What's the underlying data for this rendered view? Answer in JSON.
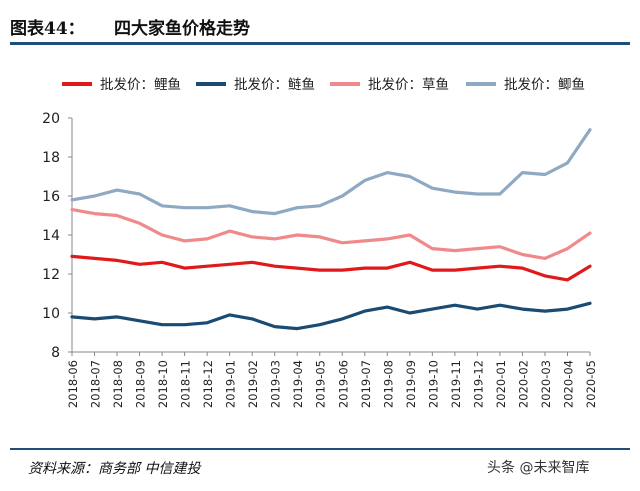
{
  "header": {
    "fig_label": "图表44：",
    "title": "四大家鱼价格走势"
  },
  "footer": {
    "source": "资料来源：商务部  中信建投",
    "watermark": "头条 @未来智库"
  },
  "colors": {
    "rule": "#1f4e79"
  },
  "chart_data": {
    "type": "line",
    "ylim": [
      8,
      20
    ],
    "yticks": [
      8,
      10,
      12,
      14,
      16,
      18,
      20
    ],
    "grid": false,
    "legend_placement": "top",
    "categories": [
      "2018-06",
      "2018-07",
      "2018-08",
      "2018-09",
      "2018-10",
      "2018-11",
      "2018-12",
      "2019-01",
      "2019-02",
      "2019-03",
      "2019-04",
      "2019-05",
      "2019-06",
      "2019-07",
      "2019-08",
      "2019-09",
      "2019-10",
      "2019-11",
      "2019-12",
      "2020-01",
      "2020-02",
      "2020-03",
      "2020-04",
      "2020-05"
    ],
    "series": [
      {
        "name": "批发价：鲤鱼",
        "color": "#e0191b",
        "values": [
          12.9,
          12.8,
          12.7,
          12.5,
          12.6,
          12.3,
          12.4,
          12.5,
          12.6,
          12.4,
          12.3,
          12.2,
          12.2,
          12.3,
          12.3,
          12.6,
          12.2,
          12.2,
          12.3,
          12.4,
          12.3,
          11.9,
          11.7,
          12.4
        ]
      },
      {
        "name": "批发价：鲢鱼",
        "color": "#1b4b72",
        "values": [
          9.8,
          9.7,
          9.8,
          9.6,
          9.4,
          9.4,
          9.5,
          9.9,
          9.7,
          9.3,
          9.2,
          9.4,
          9.7,
          10.1,
          10.3,
          10.0,
          10.2,
          10.4,
          10.2,
          10.4,
          10.2,
          10.1,
          10.2,
          10.5
        ]
      },
      {
        "name": "批发价：草鱼",
        "color": "#f08a8a",
        "values": [
          15.3,
          15.1,
          15.0,
          14.6,
          14.0,
          13.7,
          13.8,
          14.2,
          13.9,
          13.8,
          14.0,
          13.9,
          13.6,
          13.7,
          13.8,
          14.0,
          13.3,
          13.2,
          13.3,
          13.4,
          13.0,
          12.8,
          13.3,
          14.1
        ]
      },
      {
        "name": "批发价：鲫鱼",
        "color": "#8ea9c1",
        "values": [
          15.8,
          16.0,
          16.3,
          16.1,
          15.5,
          15.4,
          15.4,
          15.5,
          15.2,
          15.1,
          15.4,
          15.5,
          16.0,
          16.8,
          17.2,
          17.0,
          16.4,
          16.2,
          16.1,
          16.1,
          17.2,
          17.1,
          17.7,
          19.4
        ]
      }
    ]
  }
}
